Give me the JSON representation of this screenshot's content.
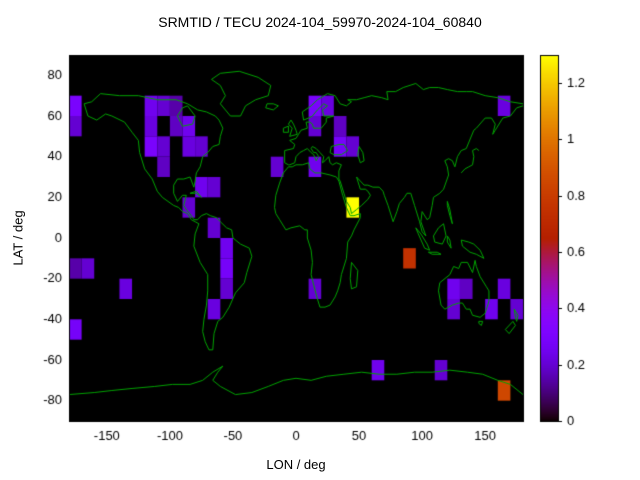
{
  "page": {
    "background": "#ffffff"
  },
  "chart_data": {
    "type": "heatmap",
    "title": "SRMTID / TECU 2024-104_59970-2024-104_60840",
    "xlabel": "LON / deg",
    "ylabel": "LAT / deg",
    "xlim": [
      -180,
      180
    ],
    "ylim": [
      -90,
      90
    ],
    "xticks": [
      -150,
      -100,
      -50,
      0,
      50,
      100,
      150
    ],
    "yticks": [
      -80,
      -60,
      -40,
      -20,
      0,
      20,
      40,
      60,
      80
    ],
    "grid": false,
    "plot_bg": "#000000",
    "coastline_color": "#00a400",
    "frame_color": "#000000",
    "text_color": "#000000",
    "basemap": "world-coastlines-equirectangular",
    "colorbar": {
      "min": 0,
      "max": 1.3,
      "ticks": [
        0,
        0.2,
        0.4,
        0.6,
        0.8,
        1,
        1.2
      ],
      "tick_labels": [
        "0",
        "0.2",
        "0.4",
        "0.6",
        "0.8",
        "1",
        "1.2"
      ],
      "palette": "gnuplot-pm3d-black-purple-red-orange-yellow",
      "position": "right"
    },
    "cell_size_deg": 10,
    "cells": [
      [
        -180,
        60,
        0.3
      ],
      [
        -180,
        50,
        0.2
      ],
      [
        -120,
        60,
        0.25
      ],
      [
        -110,
        60,
        0.2
      ],
      [
        -100,
        60,
        0.15
      ],
      [
        -120,
        50,
        0.22
      ],
      [
        -100,
        50,
        0.18
      ],
      [
        -90,
        50,
        0.25
      ],
      [
        -120,
        40,
        0.3
      ],
      [
        -110,
        40,
        0.2
      ],
      [
        -90,
        40,
        0.22
      ],
      [
        -80,
        40,
        0.2
      ],
      [
        -110,
        30,
        0.18
      ],
      [
        -20,
        30,
        0.2
      ],
      [
        10,
        60,
        0.3
      ],
      [
        20,
        60,
        0.22
      ],
      [
        10,
        50,
        0.2
      ],
      [
        30,
        50,
        0.18
      ],
      [
        30,
        40,
        0.28
      ],
      [
        40,
        40,
        0.2
      ],
      [
        10,
        30,
        0.25
      ],
      [
        160,
        60,
        0.22
      ],
      [
        -80,
        20,
        0.25
      ],
      [
        -70,
        20,
        0.2
      ],
      [
        -90,
        10,
        0.2
      ],
      [
        40,
        10,
        1.3
      ],
      [
        -70,
        0,
        0.2
      ],
      [
        -60,
        -10,
        0.25
      ],
      [
        -60,
        -20,
        0.28
      ],
      [
        -60,
        -30,
        0.2
      ],
      [
        -70,
        -40,
        0.22
      ],
      [
        -180,
        -20,
        0.15
      ],
      [
        -170,
        -20,
        0.2
      ],
      [
        -140,
        -30,
        0.22
      ],
      [
        -180,
        -50,
        0.28
      ],
      [
        85,
        -15,
        0.75
      ],
      [
        10,
        -30,
        0.2
      ],
      [
        120,
        -30,
        0.25
      ],
      [
        130,
        -30,
        0.18
      ],
      [
        160,
        -30,
        0.22
      ],
      [
        120,
        -40,
        0.2
      ],
      [
        150,
        -40,
        0.25
      ],
      [
        170,
        -40,
        0.2
      ],
      [
        60,
        -70,
        0.25
      ],
      [
        110,
        -70,
        0.2
      ],
      [
        160,
        -80,
        0.85
      ]
    ]
  }
}
